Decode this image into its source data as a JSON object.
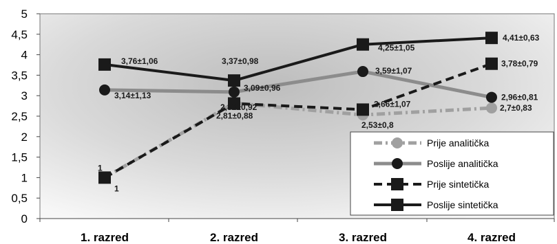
{
  "chart_data": {
    "type": "line",
    "categories": [
      "1. razred",
      "2. razred",
      "3. razred",
      "4. razred"
    ],
    "ylim": [
      0,
      5
    ],
    "yticks": [
      "0",
      "0,5",
      "1",
      "1,5",
      "2",
      "2,5",
      "3",
      "3,5",
      "4",
      "4,5",
      "5"
    ],
    "grid": false,
    "legend_position": "bottom-right",
    "series": [
      {
        "name": "Prije analitička",
        "values": [
          1,
          2.82,
          2.53,
          2.7
        ],
        "labels": [
          "1",
          "2,82±0,92",
          "2,53±0,8",
          "2,7±0,83"
        ],
        "color": "#a0a0a0",
        "style": "dash-dot",
        "marker": "circle"
      },
      {
        "name": "Poslije analitička",
        "values": [
          3.14,
          3.09,
          3.59,
          2.96
        ],
        "labels": [
          "3,14±1,13",
          "3,09±0,96",
          "3,59±1,07",
          "2,96±0,81"
        ],
        "color": "#8c8c8c",
        "style": "solid",
        "marker": "circle"
      },
      {
        "name": "Prije sintetička",
        "values": [
          1,
          2.81,
          2.66,
          3.78
        ],
        "labels": [
          "1",
          "2,81±0,88",
          "2,66±1,07",
          "3,78±0,79"
        ],
        "color": "#1a1a1a",
        "style": "dashed",
        "marker": "square"
      },
      {
        "name": "Poslije sintetička",
        "values": [
          3.76,
          3.37,
          4.25,
          4.41
        ],
        "labels": [
          "3,76±1,06",
          "3,37±0,98",
          "4,25±1,05",
          "4,41±0,63"
        ],
        "color": "#1a1a1a",
        "style": "solid",
        "marker": "square"
      }
    ]
  }
}
